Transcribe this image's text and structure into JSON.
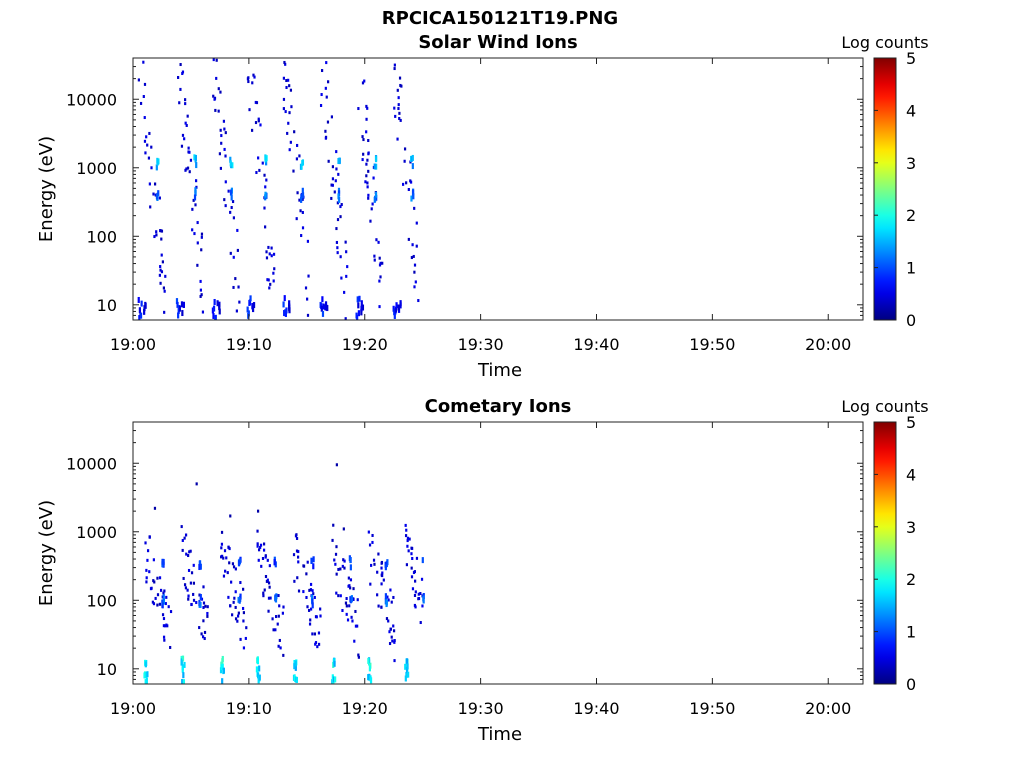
{
  "figure_title": "RPCICA150121T19.PNG",
  "chart_data": [
    {
      "type": "heatmap",
      "title": "Solar Wind Ions",
      "xlabel": "Time",
      "ylabel": "Energy (eV)",
      "xlim": [
        "19:00",
        "20:03"
      ],
      "ylim": [
        6,
        40000
      ],
      "yscale": "log",
      "xticks": [
        "19:00",
        "19:10",
        "19:20",
        "19:30",
        "19:40",
        "19:50",
        "20:00"
      ],
      "yticks": [
        10,
        100,
        1000,
        10000
      ],
      "ytick_labels": [
        "10",
        "100",
        "1000",
        "10000"
      ],
      "data_end_time": "19:25",
      "colorbar": {
        "label": "Log counts",
        "range": [
          0,
          5
        ],
        "ticks": [
          "0",
          "1",
          "2",
          "3",
          "4",
          "5"
        ]
      },
      "sweep_start_minutes": [
        0.4,
        3.7,
        6.8,
        9.8,
        12.9,
        16.1,
        19.2,
        22.4
      ],
      "bright_bands": [
        {
          "energy_eV": 1200,
          "log_counts": 1.7
        },
        {
          "energy_eV": 400,
          "log_counts": 1.3
        },
        {
          "energy_eV": 9,
          "log_counts": 0.5
        }
      ]
    },
    {
      "type": "heatmap",
      "title": "Cometary Ions",
      "xlabel": "Time",
      "ylabel": "Energy (eV)",
      "xlim": [
        "19:00",
        "20:03"
      ],
      "ylim": [
        6,
        40000
      ],
      "yscale": "log",
      "xticks": [
        "19:00",
        "19:10",
        "19:20",
        "19:30",
        "19:40",
        "19:50",
        "20:00"
      ],
      "yticks": [
        10,
        100,
        1000,
        10000
      ],
      "ytick_labels": [
        "10",
        "100",
        "1000",
        "10000"
      ],
      "data_end_time": "19:25",
      "colorbar": {
        "label": "Log counts",
        "range": [
          0,
          5
        ],
        "ticks": [
          "0",
          "1",
          "2",
          "3",
          "4",
          "5"
        ]
      },
      "sweep_start_minutes": [
        0.9,
        4.1,
        7.5,
        10.6,
        13.8,
        17.1,
        20.2,
        23.4
      ],
      "bright_bands": [
        {
          "energy_eV": 12,
          "log_counts": 2.0
        },
        {
          "energy_eV": 100,
          "log_counts": 1.2
        },
        {
          "energy_eV": 350,
          "log_counts": 1.0
        }
      ]
    }
  ]
}
